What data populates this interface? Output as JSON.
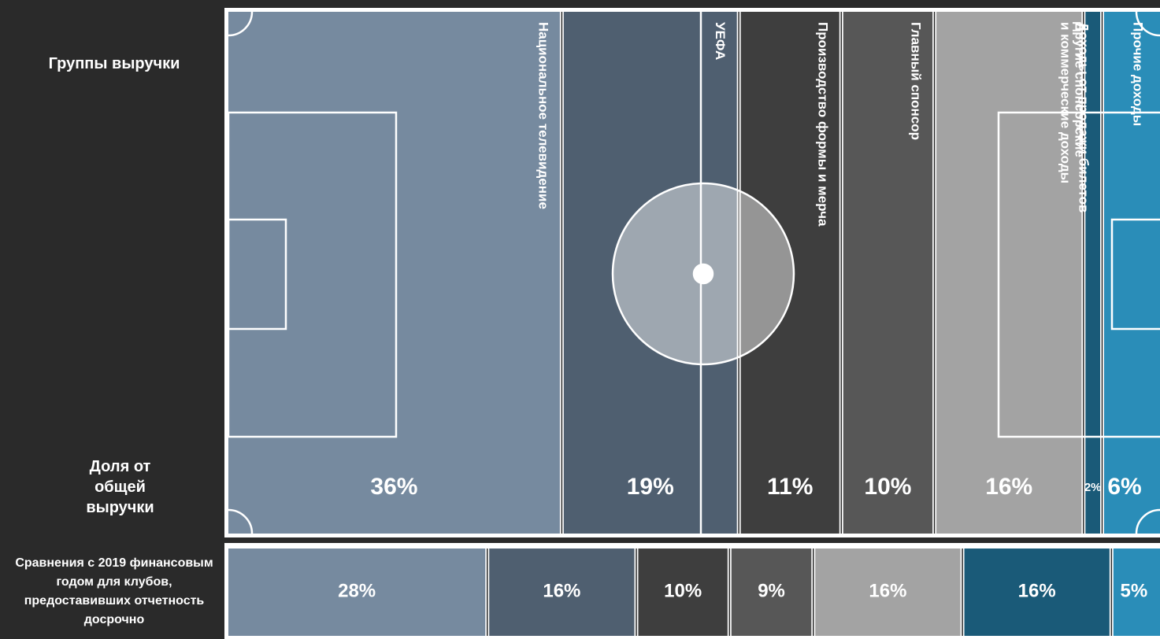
{
  "chart_data": {
    "type": "marimekko",
    "row_labels": {
      "groups": "Группы выручки",
      "share": "Доля от общей выручки",
      "comparison": "Сравнения с 2019 финансовым годом для клубов, предоставивших отчетность досрочно"
    },
    "series": [
      {
        "name": "Национальное телевидение",
        "color": "#768a9f",
        "values": [
          36,
          28
        ],
        "value_labels": [
          "36%",
          "28%"
        ]
      },
      {
        "name": "УЕФА",
        "color": "#4f5f70",
        "values": [
          19,
          16
        ],
        "value_labels": [
          "19%",
          "16%"
        ]
      },
      {
        "name": "Производство формы и мерча",
        "color": "#3e3e3e",
        "values": [
          11,
          10
        ],
        "value_labels": [
          "11%",
          "10%"
        ]
      },
      {
        "name": "Главный спонсор",
        "color": "#575757",
        "values": [
          10,
          9
        ],
        "value_labels": [
          "10%",
          "9%"
        ]
      },
      {
        "name": "Другие спонсорские и коммерческие доходы",
        "color": "#a3a3a3",
        "values": [
          16,
          16
        ],
        "value_labels": [
          "16%",
          "16%"
        ]
      },
      {
        "name": "Доходы от продажи билетов",
        "color": "#1a5a78",
        "values": [
          2,
          16
        ],
        "value_labels": [
          "2%",
          "16%"
        ]
      },
      {
        "name": "Прочие доходы",
        "color": "#2a8db8",
        "values": [
          6,
          5
        ],
        "value_labels": [
          "6%",
          "5%"
        ]
      }
    ]
  }
}
